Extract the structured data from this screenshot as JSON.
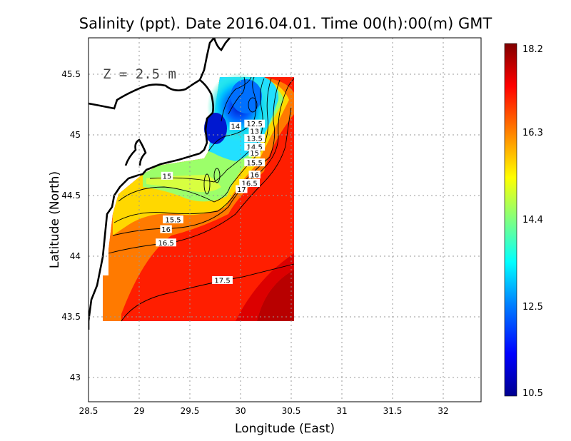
{
  "chart_data": {
    "type": "heatmap",
    "title": "Salinity (ppt). Date 2016.04.01. Time 00(h):00(m) GMT",
    "xlabel": "Longitude (East)",
    "ylabel": "Latitude (North)",
    "depth_annotation": "Z = 2.5 m",
    "xlim": [
      28.5,
      32.4
    ],
    "ylim": [
      42.8,
      45.8
    ],
    "x_ticks": [
      "28.5",
      "29",
      "29.5",
      "30",
      "30.5",
      "31",
      "31.5",
      "32"
    ],
    "y_ticks": [
      "43",
      "43.5",
      "44",
      "44.5",
      "45",
      "45.5"
    ],
    "grid": true,
    "colorbar": {
      "min": 10.5,
      "max": 18.2,
      "ticks": [
        "10.5",
        "12.5",
        "14.4",
        "16.3",
        "18.2"
      ],
      "colormap": [
        "#00008f",
        "#0000ff",
        "#0080ff",
        "#00ffff",
        "#80ff80",
        "#ffff00",
        "#ff8000",
        "#ff0000",
        "#800000"
      ]
    },
    "contour_labels": [
      {
        "text": "12.5",
        "lon": 30.15,
        "lat": 45.09
      },
      {
        "text": "13",
        "lon": 30.15,
        "lat": 45.03
      },
      {
        "text": "13.5",
        "lon": 30.15,
        "lat": 44.97
      },
      {
        "text": "14",
        "lon": 29.96,
        "lat": 45.07
      },
      {
        "text": "14.5",
        "lon": 30.15,
        "lat": 44.9
      },
      {
        "text": "15",
        "lon": 30.15,
        "lat": 44.85
      },
      {
        "text": "15.5",
        "lon": 30.15,
        "lat": 44.77
      },
      {
        "text": "16",
        "lon": 30.15,
        "lat": 44.67
      },
      {
        "text": "16.5",
        "lon": 30.1,
        "lat": 44.6
      },
      {
        "text": "17",
        "lon": 30.02,
        "lat": 44.55
      },
      {
        "text": "15",
        "lon": 29.28,
        "lat": 44.66
      },
      {
        "text": "15.5",
        "lon": 29.34,
        "lat": 44.3
      },
      {
        "text": "16",
        "lon": 29.27,
        "lat": 44.22
      },
      {
        "text": "16.5",
        "lon": 29.27,
        "lat": 44.11
      },
      {
        "text": "17.5",
        "lon": 29.83,
        "lat": 43.8
      }
    ]
  }
}
